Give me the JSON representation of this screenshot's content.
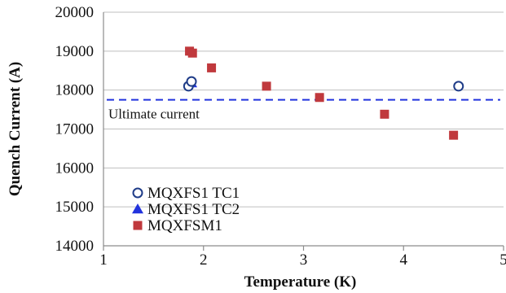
{
  "chart_data": {
    "type": "scatter",
    "xlabel": "Temperature (K)",
    "ylabel": "Quench Current (A)",
    "xlim": [
      1,
      5
    ],
    "ylim": [
      14000,
      20000
    ],
    "x_ticks": [
      "1",
      "2",
      "3",
      "4",
      "5"
    ],
    "y_ticks": [
      "14000",
      "15000",
      "16000",
      "17000",
      "18000",
      "19000",
      "20000"
    ],
    "grid": "horizontal",
    "legend_position": "bottom-left",
    "series": [
      {
        "name": "MQXFS1 TC1",
        "marker": "open-circle",
        "color": "#1f3c88",
        "points": [
          {
            "x": 1.85,
            "y": 18100
          },
          {
            "x": 1.88,
            "y": 18220
          },
          {
            "x": 4.55,
            "y": 18100
          }
        ]
      },
      {
        "name": "MQXFS1 TC2",
        "marker": "triangle",
        "color": "#2233dd",
        "points": [
          {
            "x": 1.88,
            "y": 18180
          }
        ]
      },
      {
        "name": "MQXFSM1",
        "marker": "square",
        "color": "#c0393d",
        "points": [
          {
            "x": 1.86,
            "y": 19000
          },
          {
            "x": 1.89,
            "y": 18950
          },
          {
            "x": 2.08,
            "y": 18570
          },
          {
            "x": 2.63,
            "y": 18100
          },
          {
            "x": 3.16,
            "y": 17810
          },
          {
            "x": 3.81,
            "y": 17380
          },
          {
            "x": 4.5,
            "y": 16840
          }
        ]
      }
    ],
    "reference_line": {
      "label": "Ultimate current",
      "y": 17750,
      "color": "#2233dd",
      "style": "dashed"
    }
  }
}
